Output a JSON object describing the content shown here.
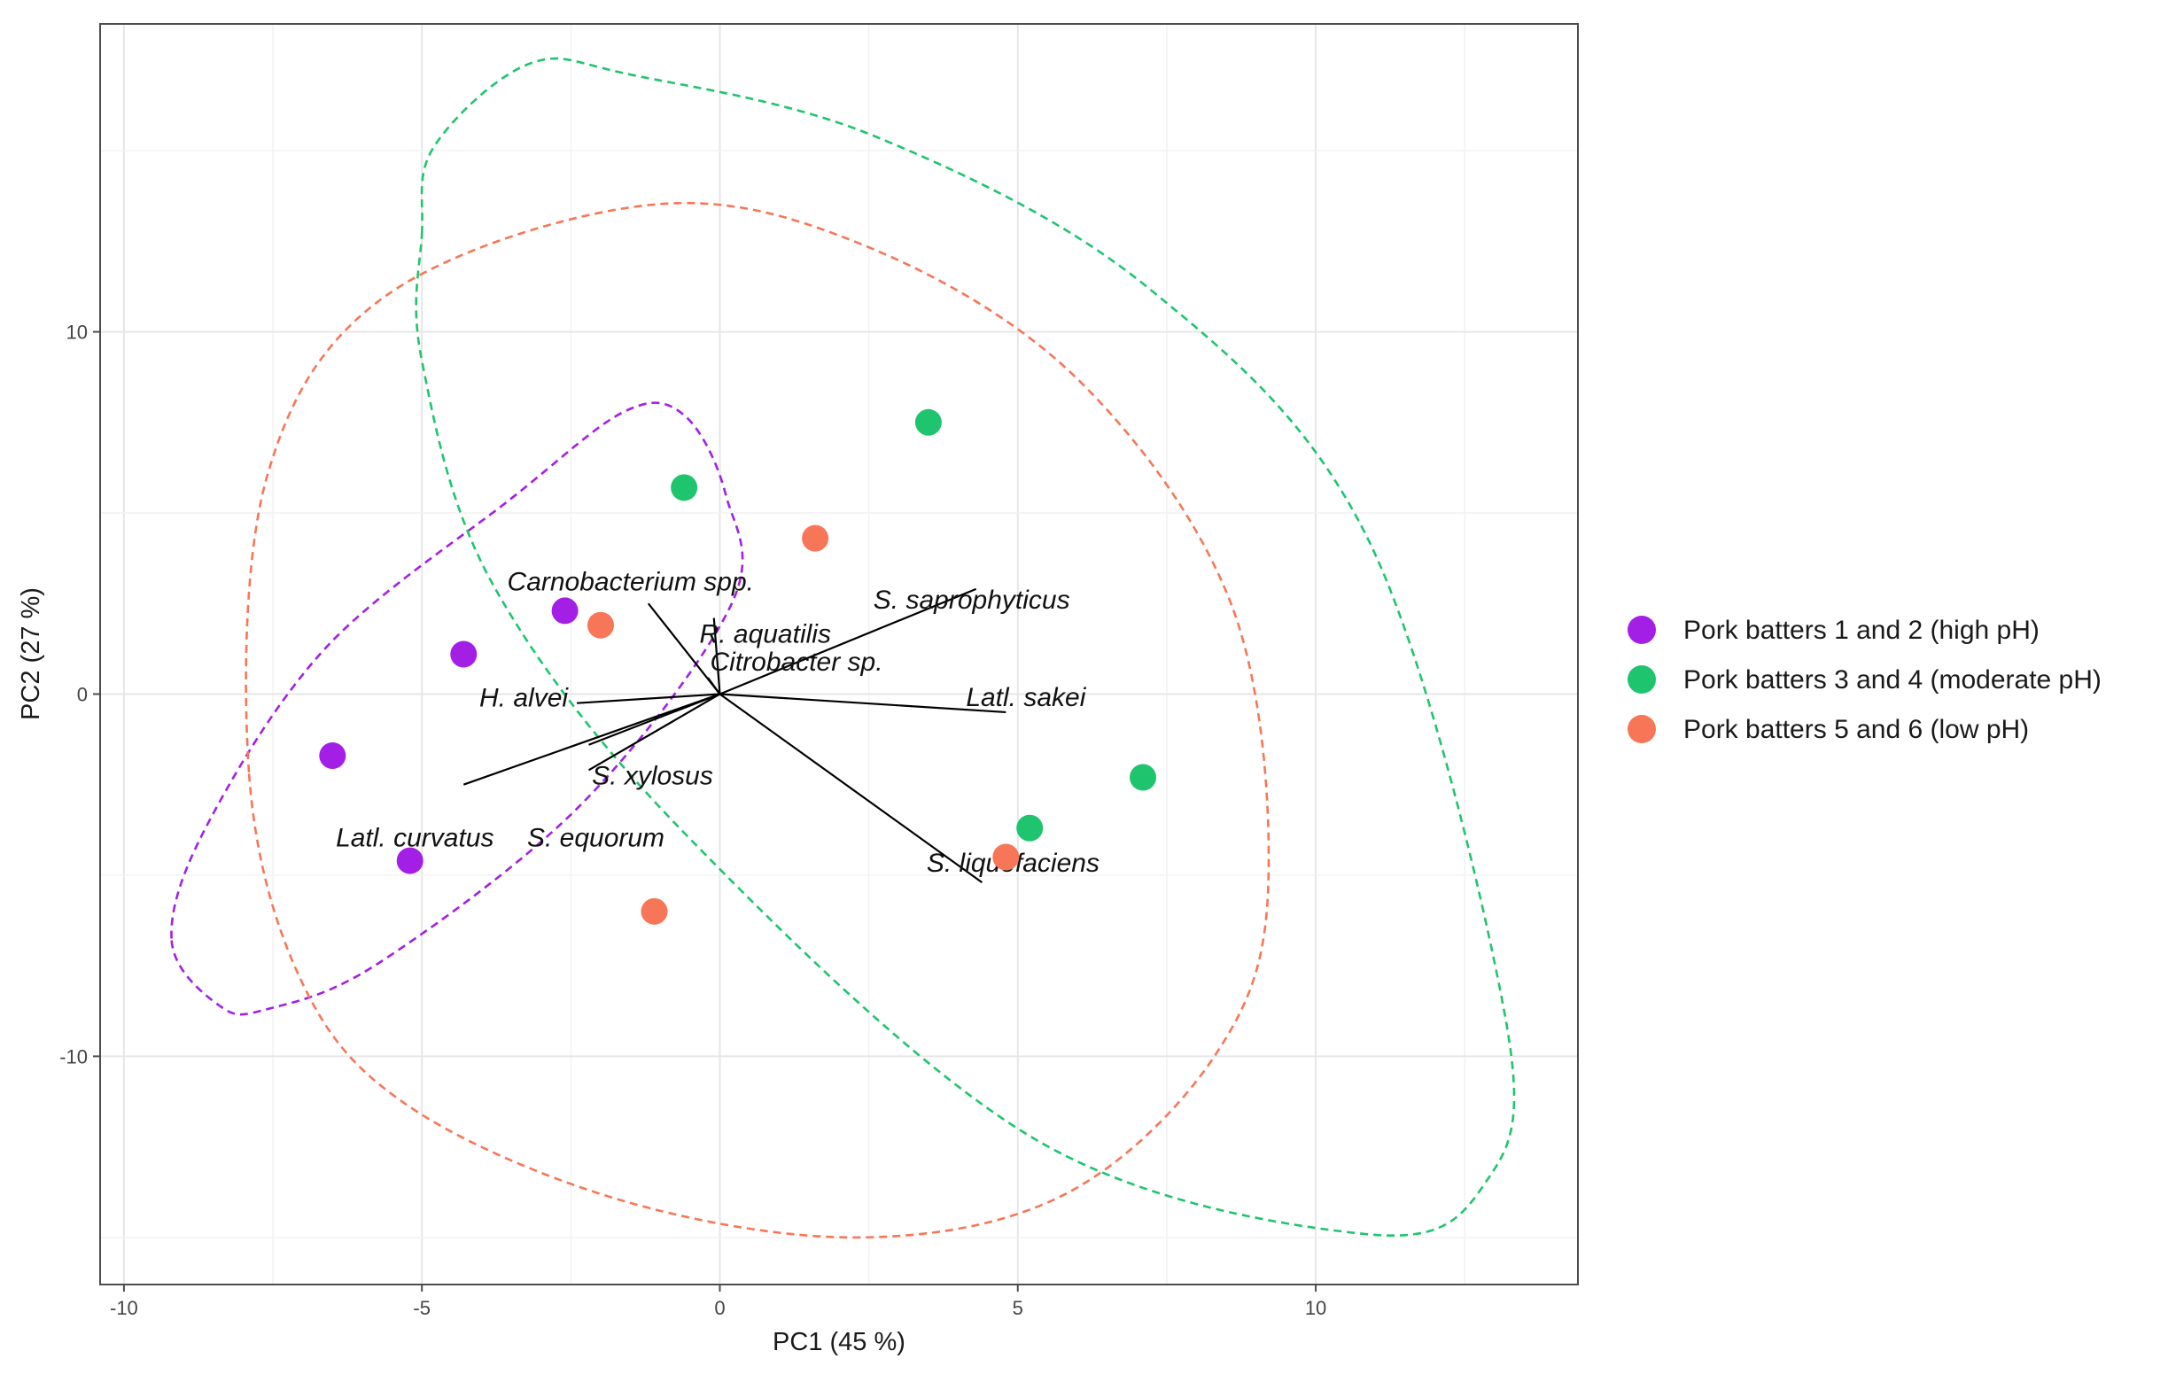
{
  "chart_data": {
    "type": "scatter",
    "title": "",
    "xlabel": "PC1 (45 %)",
    "ylabel": "PC2 (27 %)",
    "xlim": [
      -10.4,
      14.4
    ],
    "ylim": [
      -16.3,
      18.5
    ],
    "x_ticks": [
      -10,
      -5,
      0,
      5,
      10
    ],
    "y_ticks": [
      -10,
      0,
      10
    ],
    "grid": true,
    "legend_position": "right",
    "series": [
      {
        "name": "Pork batters 1 and 2 (high pH)",
        "color": "#a31fe6",
        "points": [
          {
            "x": -2.6,
            "y": 2.3
          },
          {
            "x": -4.3,
            "y": 1.1
          },
          {
            "x": -6.5,
            "y": -1.7
          },
          {
            "x": -5.2,
            "y": -4.6
          }
        ],
        "ellipse": [
          [
            -9.2,
            -6.8
          ],
          [
            -8.4,
            -8.6
          ],
          [
            -7.6,
            -8.7
          ],
          [
            -5.7,
            -7.4
          ],
          [
            -2.3,
            -3.0
          ],
          [
            0.2,
            2.5
          ],
          [
            0.1,
            5.5
          ],
          [
            -0.6,
            7.7
          ],
          [
            -1.6,
            7.8
          ],
          [
            -3.5,
            5.4
          ],
          [
            -6.6,
            1.3
          ],
          [
            -8.6,
            -3.6
          ]
        ]
      },
      {
        "name": "Pork batters 3 and 4 (moderate pH)",
        "color": "#1fc46e",
        "points": [
          {
            "x": -0.6,
            "y": 5.7
          },
          {
            "x": 3.5,
            "y": 7.5
          },
          {
            "x": 7.1,
            "y": -2.3
          },
          {
            "x": 5.2,
            "y": -3.7
          }
        ],
        "ellipse": [
          [
            -5.0,
            12.7
          ],
          [
            -4.8,
            15.1
          ],
          [
            -3.2,
            17.4
          ],
          [
            -1.5,
            17.1
          ],
          [
            2.6,
            15.4
          ],
          [
            7.2,
            11.2
          ],
          [
            10.9,
            4.2
          ],
          [
            13.2,
            -9.1
          ],
          [
            12.8,
            -13.6
          ],
          [
            10.8,
            -14.9
          ],
          [
            5.3,
            -12.3
          ],
          [
            -0.5,
            -4.0
          ],
          [
            -3.8,
            3.0
          ],
          [
            -5.0,
            9.2
          ]
        ]
      },
      {
        "name": "Pork batters 5 and 6 (low pH)",
        "color": "#f77657",
        "points": [
          {
            "x": -2.0,
            "y": 1.9
          },
          {
            "x": 1.6,
            "y": 4.3
          },
          {
            "x": 4.8,
            "y": -4.5
          },
          {
            "x": -1.1,
            "y": -6.0
          }
        ],
        "ellipse": [
          [
            -7.9,
            -2.2
          ],
          [
            -7.0,
            -8.0
          ],
          [
            -5.2,
            -11.4
          ],
          [
            -1.6,
            -14.0
          ],
          [
            2.4,
            -15.0
          ],
          [
            5.8,
            -13.8
          ],
          [
            8.3,
            -10.0
          ],
          [
            9.2,
            -5.4
          ],
          [
            8.6,
            2.4
          ],
          [
            6.0,
            8.7
          ],
          [
            2.4,
            12.4
          ],
          [
            -1.2,
            13.5
          ],
          [
            -5.6,
            11.0
          ],
          [
            -7.6,
            6.0
          ]
        ]
      }
    ],
    "loadings": [
      {
        "label": "Carnobacterium spp.",
        "x": -1.2,
        "y": 2.5
      },
      {
        "label": "S. saprophyticus",
        "x": 4.3,
        "y": 2.9
      },
      {
        "label": "R. aquatilis",
        "x": -0.1,
        "y": 2.1
      },
      {
        "label": "Citrobacter sp.",
        "x": -0.2,
        "y": 0.45
      },
      {
        "label": "H. alvei",
        "x": -2.4,
        "y": -0.25
      },
      {
        "label": "Latl. sakei",
        "x": 4.8,
        "y": -0.5
      },
      {
        "label": "S. xylosus",
        "x": -2.2,
        "y": -1.4
      },
      {
        "label": "S. equorum",
        "x": -2.2,
        "y": -2.1
      },
      {
        "label": "Latl. curvatus",
        "x": -4.3,
        "y": -2.5
      },
      {
        "label": "S. liquefaciens",
        "x": 4.4,
        "y": -5.2
      }
    ]
  }
}
